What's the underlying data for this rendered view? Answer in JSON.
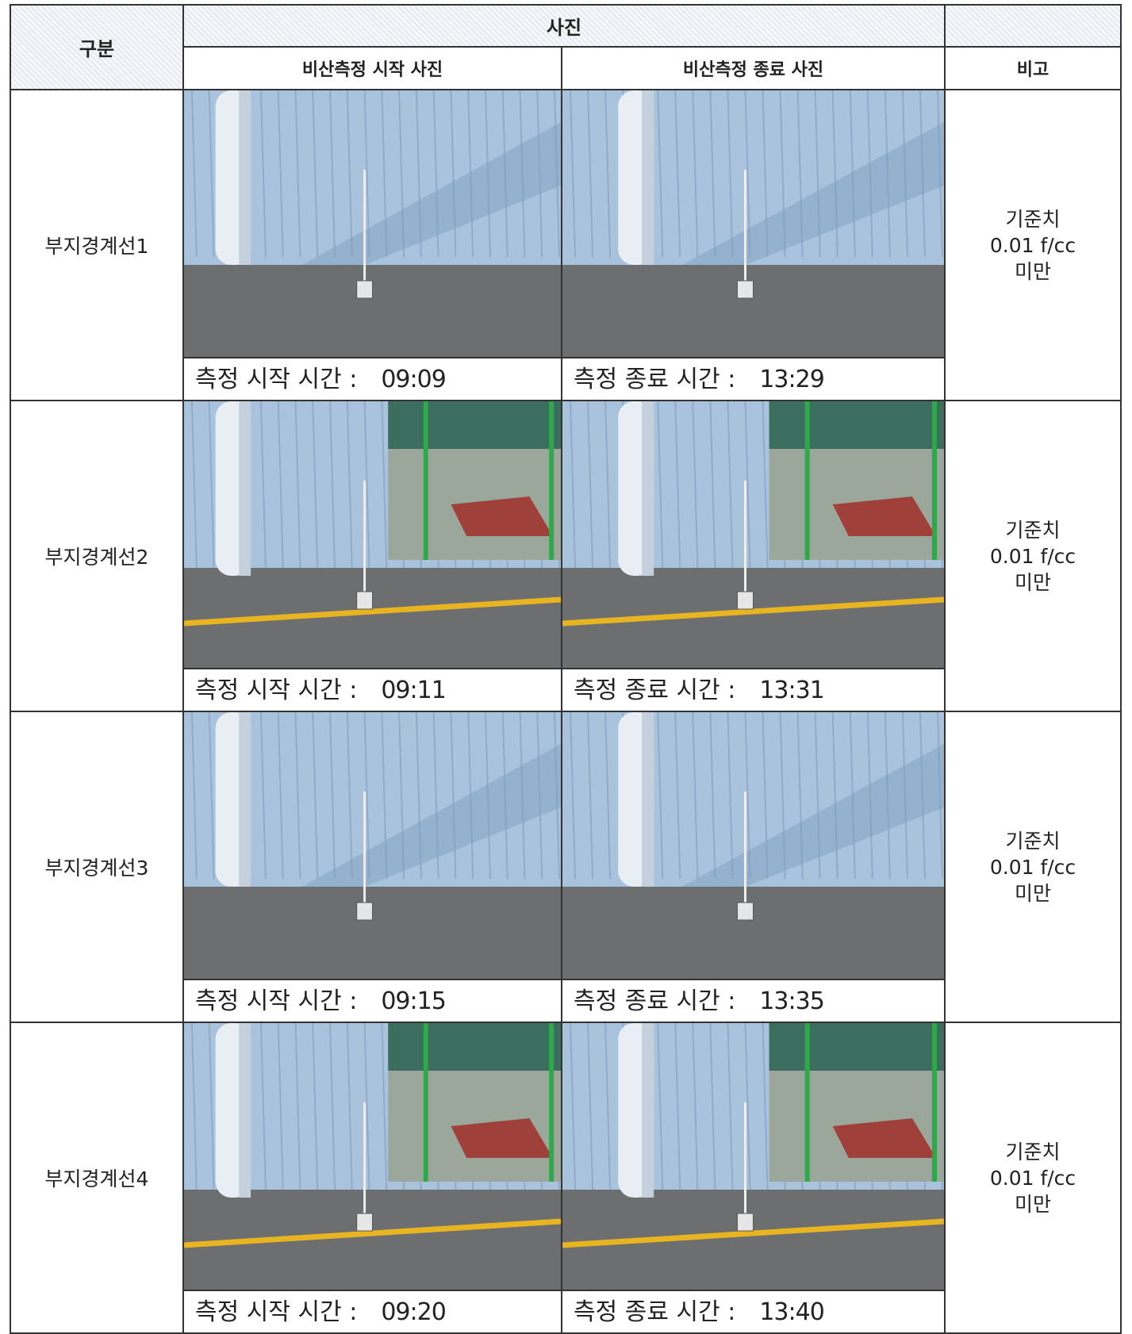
{
  "header": {
    "group": "구분",
    "photos": "사진",
    "start_photo": "비산측정 시작 사진",
    "end_photo": "비산측정 종료 사진",
    "note": "비고"
  },
  "rows": [
    {
      "label": "부지경계선1",
      "start_caption": "측정 시작 시간 :",
      "start_time": "09:09",
      "end_caption": "측정 종료 시간 :",
      "end_time": "13:29",
      "note": [
        "기준치",
        "0.01 f/cc",
        "미만"
      ]
    },
    {
      "label": "부지경계선2",
      "start_caption": "측정 시작 시간 :",
      "start_time": "09:11",
      "end_caption": "측정 종료 시간 :",
      "end_time": "13:31",
      "note": [
        "기준치",
        "0.01 f/cc",
        "미만"
      ]
    },
    {
      "label": "부지경계선3",
      "start_caption": "측정 시작 시간 :",
      "start_time": "09:15",
      "end_caption": "측정 종료 시간 :",
      "end_time": "13:35",
      "note": [
        "기준치",
        "0.01 f/cc",
        "미만"
      ]
    },
    {
      "label": "부지경계선4",
      "start_caption": "측정 시작 시간 :",
      "start_time": "09:20",
      "end_caption": "측정 종료 시간 :",
      "end_time": "13:40",
      "note": [
        "기준치",
        "0.01 f/cc",
        "미만"
      ]
    }
  ]
}
